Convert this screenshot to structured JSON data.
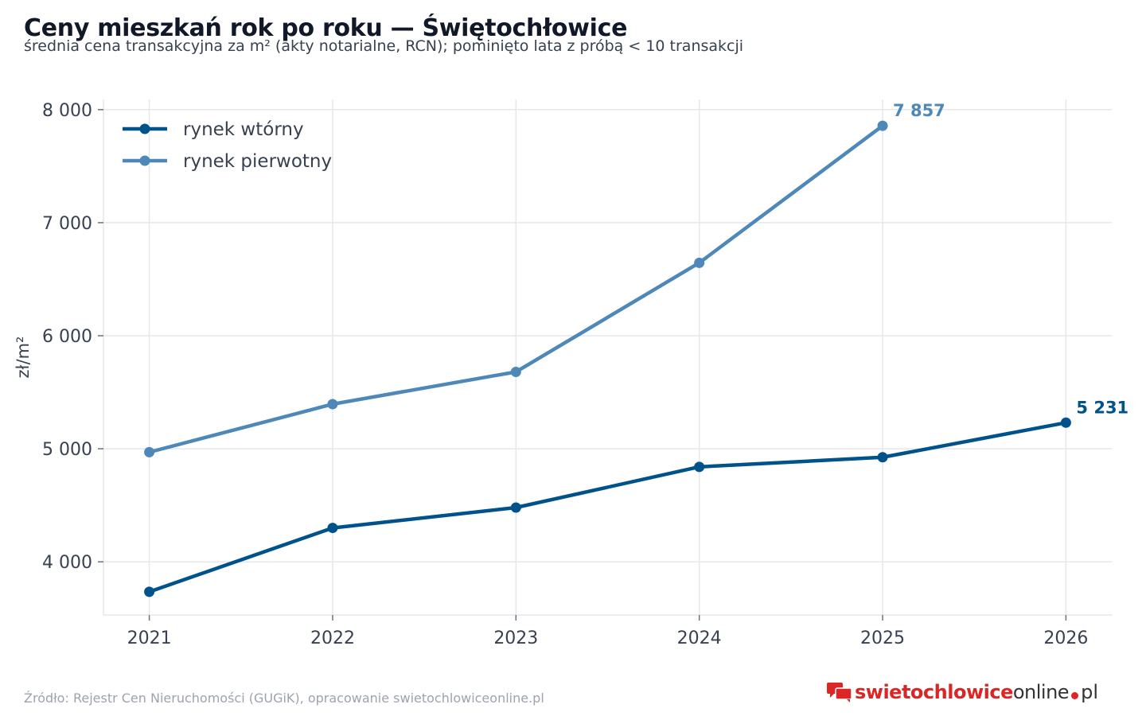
{
  "header": {
    "title": "Ceny mieszkań rok po roku — Świętochłowice",
    "subtitle": "średnia cena transakcyjna za m² (akty notarialne, RCN); pominięto lata z próbą < 10 transakcji"
  },
  "footer": {
    "source": "Źródło: Rejestr Cen Nieruchomości (GUGiK), opracowanie swietochlowiceonline.pl",
    "logo": {
      "part1": "swietochlowice",
      "part2": "online",
      "part3": "pl",
      "accent_color": "#dc2626"
    }
  },
  "chart_data": {
    "type": "line",
    "title": "Ceny mieszkań rok po roku — Świętochłowice",
    "ylabel": "zł/m²",
    "xlabel": "",
    "x": [
      2021,
      2022,
      2023,
      2024,
      2025,
      2026
    ],
    "x_tick_labels": [
      "2021",
      "2022",
      "2023",
      "2024",
      "2025",
      "2026"
    ],
    "ylim": [
      3530,
      8090
    ],
    "y_ticks": [
      4000,
      5000,
      6000,
      7000,
      8000
    ],
    "y_tick_labels": [
      "4 000",
      "5 000",
      "6 000",
      "7 000",
      "8 000"
    ],
    "grid": true,
    "legend_position": "top-left",
    "series": [
      {
        "name": "rynek wtórny",
        "color": "#00538a",
        "values": [
          3735,
          4300,
          4480,
          4840,
          4925,
          5231
        ],
        "end_label": "5 231"
      },
      {
        "name": "rynek pierwotny",
        "color": "#4d88b8",
        "values": [
          4970,
          5395,
          5680,
          6645,
          7857,
          null
        ],
        "end_label": "7 857"
      }
    ]
  }
}
